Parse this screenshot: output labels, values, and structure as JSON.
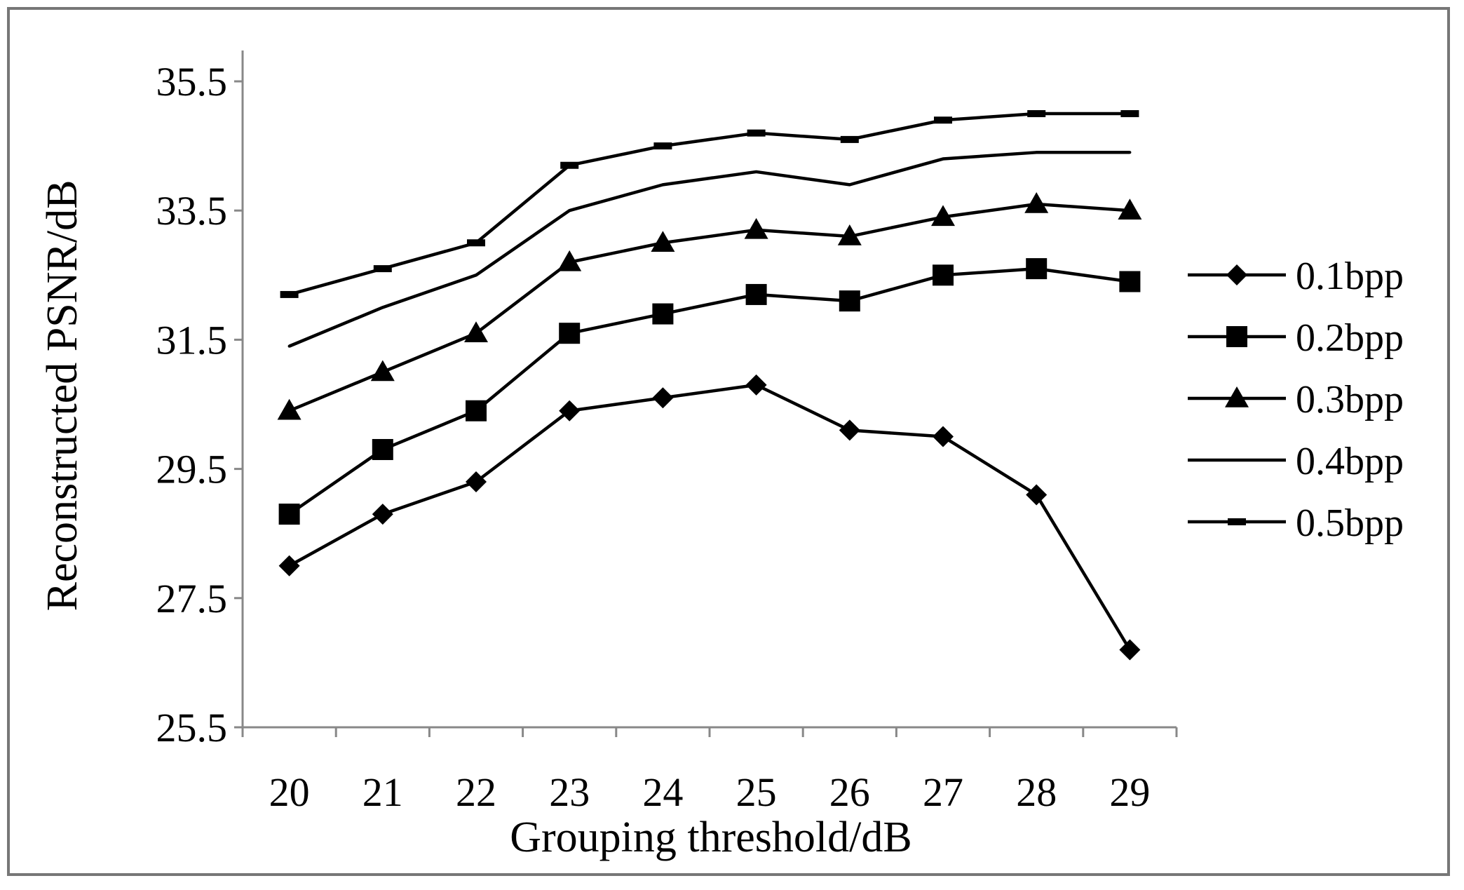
{
  "chart_data": {
    "type": "line",
    "title": "",
    "xlabel": "Grouping threshold/dB",
    "ylabel": "Reconstructed PSNR/dB",
    "categories": [
      "20",
      "21",
      "22",
      "23",
      "24",
      "25",
      "26",
      "27",
      "28",
      "29"
    ],
    "ylim": [
      25.5,
      35.5
    ],
    "yticks": [
      "25.5",
      "27.5",
      "29.5",
      "31.5",
      "33.5",
      "35.5"
    ],
    "grid": false,
    "legend_position": "right",
    "series": [
      {
        "name": "0.1bpp",
        "marker": "diamond",
        "values": [
          28.0,
          28.8,
          29.3,
          30.4,
          30.6,
          30.8,
          30.1,
          30.0,
          29.1,
          26.7
        ]
      },
      {
        "name": "0.2bpp",
        "marker": "square",
        "values": [
          28.8,
          29.8,
          30.4,
          31.6,
          31.9,
          32.2,
          32.1,
          32.5,
          32.6,
          32.4
        ]
      },
      {
        "name": "0.3bpp",
        "marker": "triangle",
        "values": [
          30.4,
          31.0,
          31.6,
          32.7,
          33.0,
          33.2,
          33.1,
          33.4,
          33.6,
          33.5
        ]
      },
      {
        "name": "0.4bpp",
        "marker": "none",
        "values": [
          31.4,
          32.0,
          32.5,
          33.5,
          33.9,
          34.1,
          33.9,
          34.3,
          34.4,
          34.4
        ]
      },
      {
        "name": "0.5bpp",
        "marker": "dash",
        "values": [
          32.2,
          32.6,
          33.0,
          34.2,
          34.5,
          34.7,
          34.6,
          34.9,
          35.0,
          35.0
        ]
      }
    ]
  }
}
